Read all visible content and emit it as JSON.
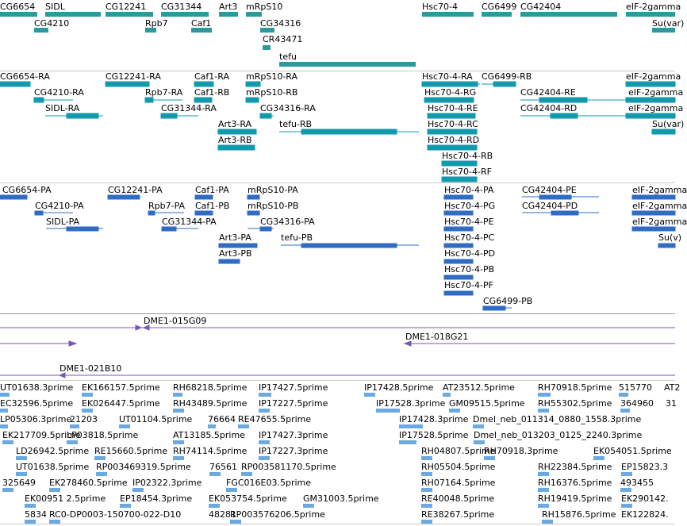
{
  "colors": {
    "gene": "#2a9a9a",
    "transcript": "#129aac",
    "protein": "#2f6cc4",
    "clone": "#7a56b6",
    "est": "#6aaae0"
  },
  "genes": [
    {
      "label": "CG6654"
    },
    {
      "label": "SIDL"
    },
    {
      "label": "CG12241"
    },
    {
      "label": "CG31344"
    },
    {
      "label": "Art3"
    },
    {
      "label": "mRpS10"
    },
    {
      "label": "CG4210"
    },
    {
      "label": "Rpb7"
    },
    {
      "label": "Caf1"
    },
    {
      "label": "CG34316"
    },
    {
      "label": "CR43471"
    },
    {
      "label": "tefu"
    },
    {
      "label": "Hsc70-4"
    },
    {
      "label": "CG6499"
    },
    {
      "label": "CG42404"
    },
    {
      "label": "eIF-2gamma"
    },
    {
      "label": "Su(var)"
    }
  ],
  "transcripts": [
    {
      "label": "CG6654-RA"
    },
    {
      "label": "CG4210-RA"
    },
    {
      "label": "SIDL-RA"
    },
    {
      "label": "CG12241-RA"
    },
    {
      "label": "Rpb7-RA"
    },
    {
      "label": "CG31344-RA"
    },
    {
      "label": "Caf1-RA"
    },
    {
      "label": "Caf1-RB"
    },
    {
      "label": "Art3-RA"
    },
    {
      "label": "Art3-RB"
    },
    {
      "label": "mRpS10-RA"
    },
    {
      "label": "mRpS10-RB"
    },
    {
      "label": "CG34316-RA"
    },
    {
      "label": "tefu-RB"
    },
    {
      "label": "Hsc70-4-RA"
    },
    {
      "label": "Hsc70-4-RG"
    },
    {
      "label": "Hsc70-4-RE"
    },
    {
      "label": "Hsc70-4-RC"
    },
    {
      "label": "Hsc70-4-RD"
    },
    {
      "label": "Hsc70-4-RB"
    },
    {
      "label": "Hsc70-4-RF"
    },
    {
      "label": "CG6499-RB"
    },
    {
      "label": "CG42404-RE"
    },
    {
      "label": "CG42404-RD"
    },
    {
      "label": "eIF-2gamma"
    },
    {
      "label": "eIF-2gamma"
    },
    {
      "label": "eIF-2gamma"
    },
    {
      "label": "Su(var)"
    }
  ],
  "proteins": [
    {
      "label": "CG6654-PA"
    },
    {
      "label": "CG4210-PA"
    },
    {
      "label": "SIDL-PA"
    },
    {
      "label": "CG12241-PA"
    },
    {
      "label": "Rpb7-PA"
    },
    {
      "label": "CG31344-PA"
    },
    {
      "label": "Caf1-PA"
    },
    {
      "label": "Caf1-PB"
    },
    {
      "label": "Art3-PA"
    },
    {
      "label": "Art3-PB"
    },
    {
      "label": "mRpS10-PA"
    },
    {
      "label": "mRpS10-PB"
    },
    {
      "label": "CG34316-PA"
    },
    {
      "label": "tefu-PB"
    },
    {
      "label": "Hsc70-4-PA"
    },
    {
      "label": "Hsc70-4-PG"
    },
    {
      "label": "Hsc70-4-PE"
    },
    {
      "label": "Hsc70-4-PC"
    },
    {
      "label": "Hsc70-4-PD"
    },
    {
      "label": "Hsc70-4-PB"
    },
    {
      "label": "Hsc70-4-PF"
    },
    {
      "label": "CG6499-PB"
    },
    {
      "label": "CG42404-PE"
    },
    {
      "label": "CG42404-PD"
    },
    {
      "label": "eIF-2gamma"
    },
    {
      "label": "eIF-2gamma"
    },
    {
      "label": "eIF-2gamma"
    },
    {
      "label": "Su(v)"
    }
  ],
  "clones": [
    {
      "label": "DME1-015G09"
    },
    {
      "label": "DME1-018G21"
    },
    {
      "label": "DME1-021B10"
    }
  ],
  "ests": [
    {
      "label": "UT01638.3prime"
    },
    {
      "label": "EK166157.5prime"
    },
    {
      "label": "RH68218.5prime"
    },
    {
      "label": "IP17427.5prime"
    },
    {
      "label": "IP17428.5prime"
    },
    {
      "label": "AT23512.5prime"
    },
    {
      "label": "RH70918.5prime"
    },
    {
      "label": "515770"
    },
    {
      "label": "AT2"
    },
    {
      "label": "EC32596.5prime"
    },
    {
      "label": "EK026447.5prime"
    },
    {
      "label": "RH43489.5prime"
    },
    {
      "label": "IP17227.5prime"
    },
    {
      "label": "IP17528.3prime"
    },
    {
      "label": "GM09515.5prime"
    },
    {
      "label": "RH55302.5prime"
    },
    {
      "label": "364960"
    },
    {
      "label": "31"
    },
    {
      "label": "LP05306.3prime"
    },
    {
      "label": "21203"
    },
    {
      "label": "UT01104.5prime"
    },
    {
      "label": "76664"
    },
    {
      "label": "RE47655.5prime"
    },
    {
      "label": "IP17428.3prime"
    },
    {
      "label": "Dmel_neb_011314_0880_1558.3prime"
    },
    {
      "label": "EK217709.5prime"
    },
    {
      "label": "LP03818.5prime"
    },
    {
      "label": "AT13185.5prime"
    },
    {
      "label": "IP17427.3prime"
    },
    {
      "label": "IP17528.5prime"
    },
    {
      "label": "Dmel_neb_013203_0125_2240.3prime"
    },
    {
      "label": "LD26942.5prime"
    },
    {
      "label": "RE15660.5prime"
    },
    {
      "label": "RH74114.5prime"
    },
    {
      "label": "IP17227.3prime"
    },
    {
      "label": "RH04807.5prime"
    },
    {
      "label": "RH70918.3prime"
    },
    {
      "label": "EK054051.5prime"
    },
    {
      "label": "UT01638.5prime"
    },
    {
      "label": "RP003469319.5prime"
    },
    {
      "label": "76561"
    },
    {
      "label": "RP003581170.5prime"
    },
    {
      "label": "RH05504.5prime"
    },
    {
      "label": "RH22384.5prime"
    },
    {
      "label": "EP15823.3"
    },
    {
      "label": "325649"
    },
    {
      "label": "EK278460.5prime"
    },
    {
      "label": "IP02322.3prime"
    },
    {
      "label": "FGC016E03.5prime"
    },
    {
      "label": "RH07164.5prime"
    },
    {
      "label": "RH16376.5prime"
    },
    {
      "label": "493455"
    },
    {
      "label": "EK00951 2.5prime"
    },
    {
      "label": "EP18454.3prime"
    },
    {
      "label": "EK053754.5prime"
    },
    {
      "label": "GM31003.5prime"
    },
    {
      "label": "RE40048.5prime"
    },
    {
      "label": "RH19419.5prime"
    },
    {
      "label": "EK290142."
    },
    {
      "label": "5834"
    },
    {
      "label": "RC0-DP0003-150700-022-D10"
    },
    {
      "label": "48281"
    },
    {
      "label": "RP003576206.5prime"
    },
    {
      "label": "RE38267.5prime"
    },
    {
      "label": "RH15876.5prime"
    },
    {
      "label": "EK122824."
    }
  ]
}
